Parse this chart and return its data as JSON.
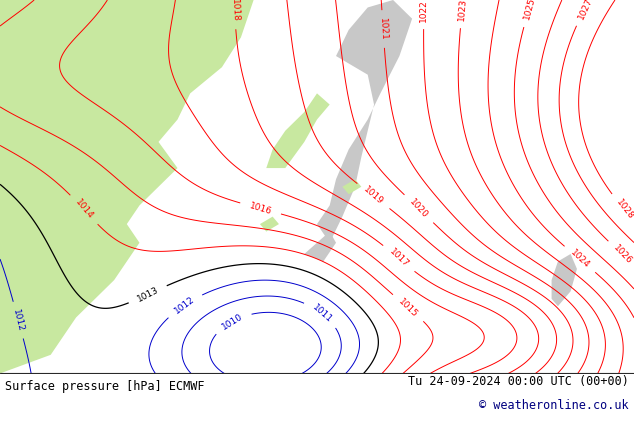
{
  "title_left": "Surface pressure [hPa] ECMWF",
  "title_right": "Tu 24-09-2024 00:00 UTC (00+00)",
  "copyright": "© weatheronline.co.uk",
  "background_color": "#ffffff",
  "land_color_green": "#c8e8a0",
  "land_color_gray": "#c8c8c8",
  "sea_color": "#dcdcdc",
  "contour_color_red": "#ff0000",
  "contour_color_black": "#000000",
  "contour_color_blue": "#0000cc",
  "label_fontsize": 6.5,
  "footer_fontsize": 8.5,
  "footer_font": "monospace"
}
